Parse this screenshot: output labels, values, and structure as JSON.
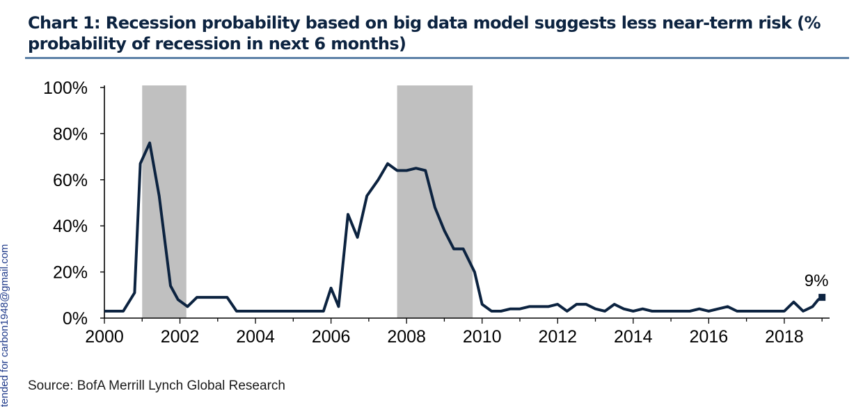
{
  "title": "Chart 1: Recession probability based on big data  model suggests less near-term risk (% probability of recession in next 6 months)",
  "source": "Source:  BofA Merrill Lynch Global Research",
  "side_watermark": "tended for carbon1948@gmail.com",
  "chart_data": {
    "type": "line",
    "title": "Chart 1: Recession probability based on big data  model suggests less near-term risk (% probability of recession in next 6 months)",
    "xlabel": "",
    "ylabel": "",
    "xlim": [
      2000,
      2019.2
    ],
    "ylim": [
      0,
      100
    ],
    "x_ticks": [
      2000,
      2002,
      2004,
      2006,
      2008,
      2010,
      2012,
      2014,
      2016,
      2018
    ],
    "x_tick_labels": [
      "2000",
      "2002",
      "2004",
      "2006",
      "2008",
      "2010",
      "2012",
      "2014",
      "2016",
      "2018"
    ],
    "y_ticks": [
      0,
      20,
      40,
      60,
      80,
      100
    ],
    "y_tick_labels": [
      "0%",
      "20%",
      "40%",
      "60%",
      "80%",
      "100%"
    ],
    "grid": false,
    "legend": "none",
    "shaded_periods": [
      {
        "start": 2001.0,
        "end": 2002.17
      },
      {
        "start": 2007.75,
        "end": 2009.75
      }
    ],
    "annotation": {
      "text": "9%",
      "x": 2019.0,
      "y": 9
    },
    "series": [
      {
        "color": "#0c2340",
        "x": [
          2000.0,
          2000.5,
          2000.8,
          2000.95,
          2001.2,
          2001.45,
          2001.75,
          2001.95,
          2002.2,
          2002.45,
          2002.7,
          2003.0,
          2003.25,
          2003.5,
          2004.0,
          2004.5,
          2005.0,
          2005.5,
          2005.8,
          2006.0,
          2006.2,
          2006.45,
          2006.7,
          2006.95,
          2007.25,
          2007.5,
          2007.75,
          2008.0,
          2008.25,
          2008.5,
          2008.75,
          2009.0,
          2009.25,
          2009.5,
          2009.8,
          2010.0,
          2010.25,
          2010.5,
          2010.75,
          2011.0,
          2011.25,
          2011.5,
          2011.75,
          2012.0,
          2012.25,
          2012.5,
          2012.75,
          2013.0,
          2013.25,
          2013.5,
          2013.75,
          2014.0,
          2014.25,
          2014.5,
          2015.0,
          2015.5,
          2015.75,
          2016.0,
          2016.25,
          2016.5,
          2016.75,
          2017.0,
          2017.5,
          2017.8,
          2018.0,
          2018.25,
          2018.5,
          2018.75,
          2018.9,
          2019.0
        ],
        "y": [
          3,
          3,
          11,
          67,
          76,
          53,
          14,
          8,
          5,
          9,
          9,
          9,
          9,
          3,
          3,
          3,
          3,
          3,
          3,
          13,
          5,
          45,
          35,
          53,
          60,
          67,
          64,
          64,
          65,
          64,
          48,
          38,
          30,
          30,
          20,
          6,
          3,
          3,
          4,
          4,
          5,
          5,
          5,
          6,
          3,
          6,
          6,
          4,
          3,
          6,
          4,
          3,
          4,
          3,
          3,
          3,
          4,
          3,
          4,
          5,
          3,
          3,
          3,
          3,
          3,
          7,
          3,
          5,
          8,
          9
        ]
      }
    ]
  }
}
